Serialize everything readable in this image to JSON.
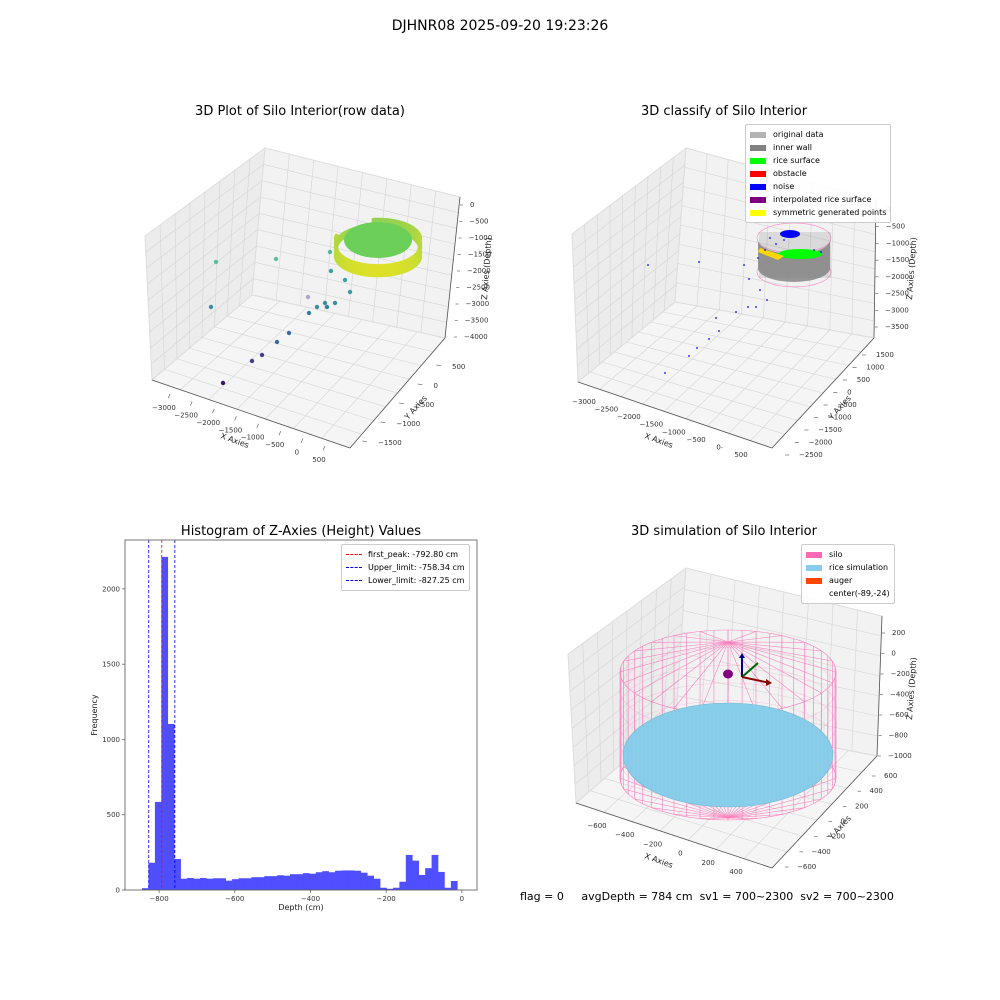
{
  "suptitle": "DJHNR08 2025-09-20 19:23:26",
  "footer": {
    "flag": "flag = 0",
    "avg_depth": "avgDepth = 784 cm",
    "sv1": "sv1 = 700~2300",
    "sv2": "sv2 = 700~2300"
  },
  "chart_data": [
    {
      "type": "scatter",
      "id": "raw3d",
      "title": "3D Plot of Silo Interior(row data)",
      "xlabel": "X Axies",
      "ylabel": "Y Axies",
      "zlabel": "Z Axies (Depth)",
      "x_ticks": [
        "-3000",
        "-2500",
        "-2000",
        "-1500",
        "-1000",
        "-500",
        "0",
        "500"
      ],
      "y_ticks": [
        "500",
        "0",
        "-500",
        "-1000",
        "-1500"
      ],
      "z_ticks": [
        "0",
        "-500",
        "-1000",
        "-1500",
        "-2000",
        "-2500",
        "-3000",
        "-3500",
        "-4000"
      ],
      "colormap": "viridis",
      "description": "dense ring of points near top (z≈-800) colored yellow-green, sparse outliers descending toward x≈-2500, z≈-4000"
    },
    {
      "type": "scatter",
      "id": "classify3d",
      "title": "3D classify of Silo Interior",
      "xlabel": "X Axies",
      "ylabel": "Y Axies",
      "zlabel": "Z Axies (Depth)",
      "x_ticks": [
        "-3000",
        "-2500",
        "-2000",
        "-1500",
        "-1000",
        "-500",
        "0",
        "500"
      ],
      "y_ticks": [
        "1500",
        "1000",
        "500",
        "0",
        "-500",
        "-1000",
        "-1500",
        "-2000",
        "-2500"
      ],
      "z_ticks": [
        "0",
        "-500",
        "-1000",
        "-1500",
        "-2000",
        "-2500",
        "-3000",
        "-3500"
      ],
      "legend": [
        {
          "label": "original data",
          "color": "#b3b3b3"
        },
        {
          "label": "inner wall",
          "color": "#808080"
        },
        {
          "label": "rice surface",
          "color": "#00ff00"
        },
        {
          "label": "obstacle",
          "color": "#ff0000"
        },
        {
          "label": "noise",
          "color": "#0000ff"
        },
        {
          "label": "interpolated rice surface",
          "color": "#800080"
        },
        {
          "label": "symmetric generated points",
          "color": "#ffff00"
        }
      ],
      "legend_position": "top-right"
    },
    {
      "type": "bar",
      "id": "histogram",
      "title": "Histogram of Z-Axies (Height) Values",
      "xlabel": "Depth (cm)",
      "ylabel": "Frequency",
      "xlim": [
        -890,
        40
      ],
      "ylim": [
        0,
        2325
      ],
      "x_ticks": [
        -800,
        -600,
        -400,
        -200,
        0
      ],
      "y_ticks": [
        0,
        500,
        1000,
        1500,
        2000
      ],
      "bin_start": -845,
      "bin_width": 17,
      "values": [
        12,
        181,
        585,
        2213,
        1103,
        206,
        75,
        80,
        75,
        80,
        75,
        78,
        78,
        62,
        72,
        78,
        78,
        85,
        85,
        92,
        92,
        98,
        95,
        105,
        105,
        112,
        108,
        118,
        125,
        118,
        128,
        130,
        130,
        128,
        115,
        95,
        75,
        15,
        8,
        15,
        55,
        233,
        195,
        100,
        145,
        233,
        120,
        15,
        60
      ],
      "bar_color": "#4b4bff",
      "vlines": [
        {
          "label": "first_peak: -792.80 cm",
          "x": -792.8,
          "color": "#ff0000"
        },
        {
          "label": "Upper_limit: -758.34 cm",
          "x": -758.34,
          "color": "#0000ff"
        },
        {
          "label": "Lower_limit: -827.25 cm",
          "x": -827.25,
          "color": "#0000ff"
        }
      ],
      "legend_position": "top-right"
    },
    {
      "type": "surface",
      "id": "simulation3d",
      "title": "3D simulation of Silo Interior",
      "xlabel": "X Axies",
      "ylabel": "Y Axies",
      "zlabel": "Z Axies (Depth)",
      "x_ticks": [
        "-600",
        "-400",
        "-200",
        "0",
        "200",
        "400"
      ],
      "y_ticks": [
        "600",
        "400",
        "200",
        "0",
        "-200",
        "-400",
        "-600"
      ],
      "z_ticks": [
        "200",
        "0",
        "-200",
        "-400",
        "-600",
        "-800",
        "-1000"
      ],
      "legend": [
        {
          "label": "silo",
          "color": "#ff69b4"
        },
        {
          "label": "rice simulation",
          "color": "#87ceeb"
        },
        {
          "label": "auger",
          "color": "#ff4500"
        },
        {
          "label": "center(-89,-24)",
          "color": ""
        }
      ],
      "legend_position": "top-right"
    }
  ]
}
